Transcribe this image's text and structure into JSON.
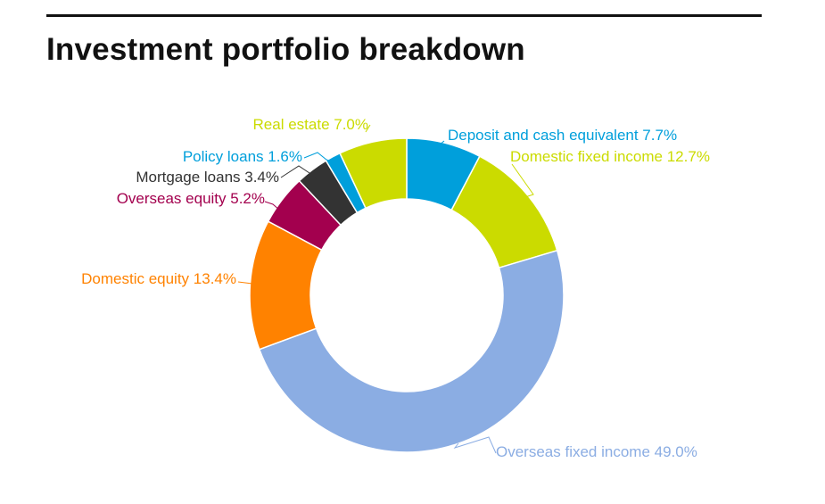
{
  "chart_data": {
    "type": "pie",
    "variant": "donut",
    "title": "Investment portfolio breakdown",
    "unit": "%",
    "slices": [
      {
        "label": "Deposit and cash equivalent",
        "value": 7.7,
        "display": "Deposit and cash equivalent 7.7%",
        "color": "#009fdb"
      },
      {
        "label": "Domestic fixed income",
        "value": 12.7,
        "display": "Domestic fixed income 12.7%",
        "color": "#cbdb00"
      },
      {
        "label": "Overseas fixed income",
        "value": 49.0,
        "display": "Overseas fixed income 49.0%",
        "color": "#8badE3"
      },
      {
        "label": "Domestic equity",
        "value": 13.4,
        "display": "Domestic equity 13.4%",
        "color": "#ff8200"
      },
      {
        "label": "Overseas equity",
        "value": 5.2,
        "display": "Overseas equity 5.2%",
        "color": "#a3004e"
      },
      {
        "label": "Mortgage loans",
        "value": 3.4,
        "display": "Mortgage loans 3.4%",
        "color": "#333333"
      },
      {
        "label": "Policy loans",
        "value": 1.6,
        "display": "Policy loans 1.6%",
        "color": "#009fdb"
      },
      {
        "label": "Real estate",
        "value": 7.0,
        "display": "Real estate 7.0%",
        "color": "#cbdb00"
      }
    ],
    "start": "12 o'clock",
    "direction": "clockwise",
    "legend": "none (callout labels)"
  }
}
